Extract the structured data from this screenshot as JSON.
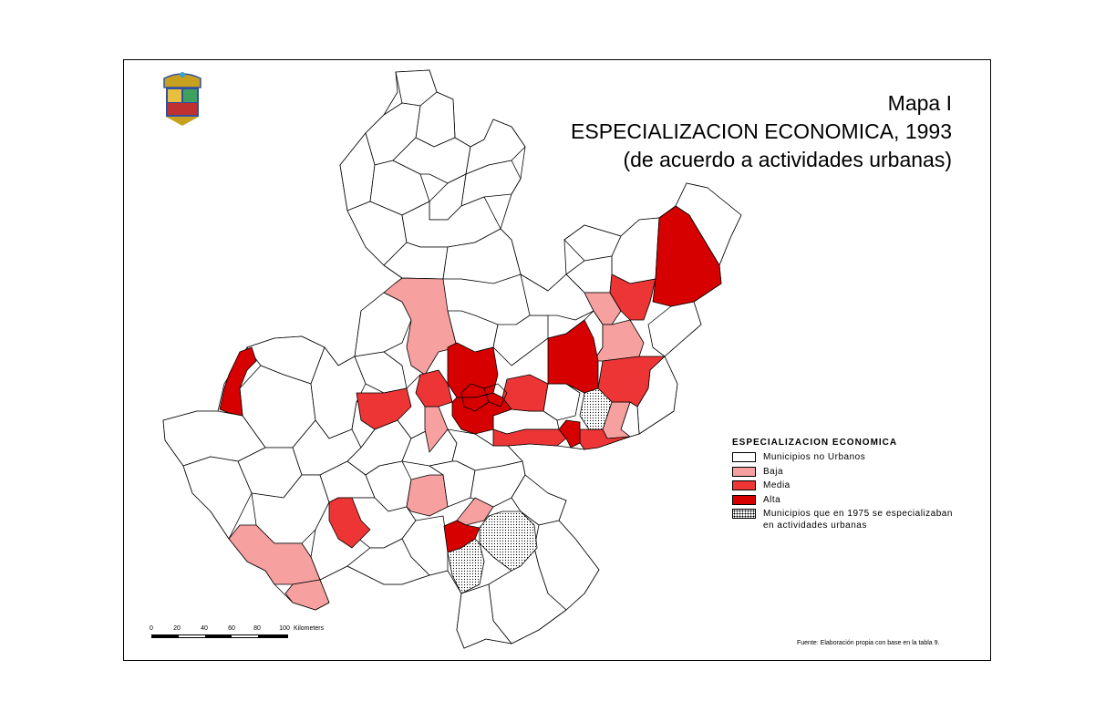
{
  "title": {
    "line1": "Mapa I",
    "line2": "ESPECIALIZACION ECONOMICA, 1993",
    "line3": "(de acuerdo a actividades urbanas)"
  },
  "legend": {
    "title": "ESPECIALIZACION ECONOMICA",
    "items": [
      {
        "label": "Municipios no Urbanos",
        "color": "#ffffff"
      },
      {
        "label": "Baja",
        "color": "#f6a0a0"
      },
      {
        "label": "Media",
        "color": "#ee3535"
      },
      {
        "label": "Alta",
        "color": "#d60000"
      },
      {
        "label": "Municipios que en 1975 se especializaban",
        "label2": "en actividades urbanas",
        "pattern": "dotted"
      }
    ]
  },
  "scale": {
    "ticks": [
      "0",
      "20",
      "40",
      "60",
      "80",
      "100"
    ],
    "unit": "Kilometers"
  },
  "source": "Fuente: Elaboración propia con base en la tabla 9.",
  "colors": {
    "no_urbano": "#ffffff",
    "baja": "#f6a0a0",
    "media": "#ee3535",
    "alta": "#d60000",
    "border": "#000000"
  },
  "icons": {
    "logo": "jalisco-coat-of-arms"
  }
}
